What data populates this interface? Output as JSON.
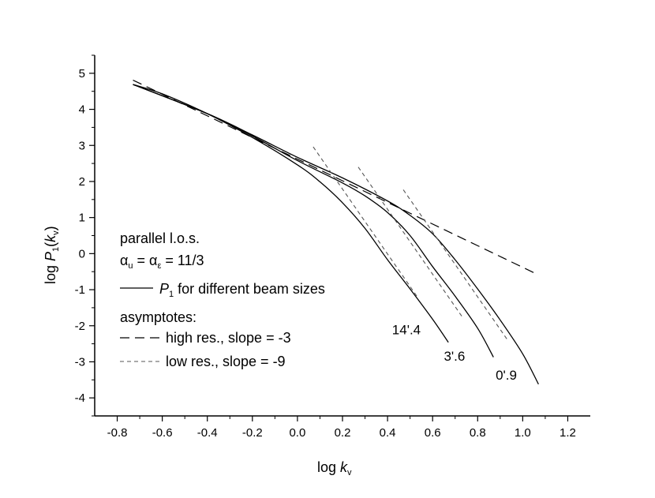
{
  "chart_data": {
    "type": "line",
    "xlabel": {
      "prefix": "log ",
      "var": "k",
      "sub": "v"
    },
    "ylabel": {
      "prefix": "log ",
      "var": "P",
      "sub": "1",
      "arg_open": "(",
      "arg_var": "k",
      "arg_sub": "v",
      "arg_close": ")"
    },
    "xlim": [
      -0.9,
      1.3
    ],
    "ylim": [
      -4.5,
      5.5
    ],
    "x_ticks": [
      -0.8,
      -0.6,
      -0.4,
      -0.2,
      0.0,
      0.2,
      0.4,
      0.6,
      0.8,
      1.0,
      1.2
    ],
    "x_tick_labels": [
      "-0.8",
      "-0.6",
      "-0.4",
      "-0.2",
      "0.0",
      "0.2",
      "0.4",
      "0.6",
      "0.8",
      "1.0",
      "1.2"
    ],
    "y_ticks": [
      5,
      4,
      3,
      2,
      1,
      0,
      -1,
      -2,
      -3,
      -4
    ],
    "y_tick_labels": [
      "5",
      "4",
      "3",
      "2",
      "1",
      "0",
      "-1",
      "-2",
      "-3",
      "-4"
    ],
    "grid": false,
    "legend": {
      "placement": "left",
      "title_line": "parallel l.o.s.",
      "alpha_line": {
        "a1": "α",
        "s1": "u",
        "eq": " = ",
        "a2": "α",
        "s2": "ε",
        "rest": " = 11/3"
      },
      "solid_entry": {
        "var": "P",
        "sub": "1",
        "text": " for different beam sizes"
      },
      "asymptotes_title": "asymptotes:",
      "dash_long_entry": "high res., slope = -3",
      "dash_short_entry": "low res., slope = -9"
    },
    "series": [
      {
        "name": "14'.4",
        "style": "solid",
        "x": [
          -0.73,
          -0.6,
          -0.4,
          -0.2,
          0.0,
          0.1,
          0.2,
          0.3,
          0.4,
          0.5,
          0.6,
          0.67
        ],
        "y": [
          4.69,
          4.43,
          3.88,
          3.22,
          2.46,
          1.99,
          1.41,
          0.7,
          -0.17,
          -0.98,
          -1.82,
          -2.46
        ]
      },
      {
        "name": "3'.6",
        "style": "solid",
        "x": [
          -0.73,
          -0.4,
          -0.2,
          0.0,
          0.2,
          0.3,
          0.4,
          0.5,
          0.6,
          0.7,
          0.8,
          0.87
        ],
        "y": [
          4.69,
          3.88,
          3.26,
          2.58,
          1.96,
          1.6,
          1.14,
          0.5,
          -0.36,
          -1.18,
          -2.07,
          -2.87
        ]
      },
      {
        "name": "0'.9",
        "style": "solid",
        "x": [
          -0.73,
          -0.4,
          -0.2,
          0.0,
          0.2,
          0.4,
          0.5,
          0.6,
          0.7,
          0.8,
          0.9,
          1.0,
          1.07
        ],
        "y": [
          4.69,
          3.88,
          3.29,
          2.67,
          2.1,
          1.46,
          1.06,
          0.55,
          -0.17,
          -0.98,
          -1.84,
          -2.78,
          -3.62
        ]
      },
      {
        "name": "high res., slope = -3",
        "style": "long-dash",
        "x": [
          -0.73,
          1.06
        ],
        "y": [
          4.81,
          -0.56
        ]
      },
      {
        "name": "low res., slope = -9",
        "style": "short-dash",
        "x": [
          0.07,
          0.53
        ],
        "y": [
          2.96,
          -1.18
        ]
      },
      {
        "name": "low res., slope = -9",
        "style": "short-dash",
        "x": [
          0.27,
          0.73
        ],
        "y": [
          2.4,
          -1.74
        ]
      },
      {
        "name": "low res., slope = -9",
        "style": "short-dash",
        "x": [
          0.47,
          0.93
        ],
        "y": [
          1.77,
          -2.37
        ]
      }
    ],
    "curve_labels": [
      {
        "text": "14'.4",
        "x": 0.42,
        "y": -2.23
      },
      {
        "text": "3'.6",
        "x": 0.65,
        "y": -2.97
      },
      {
        "text": "0'.9",
        "x": 0.88,
        "y": -3.49
      }
    ]
  }
}
